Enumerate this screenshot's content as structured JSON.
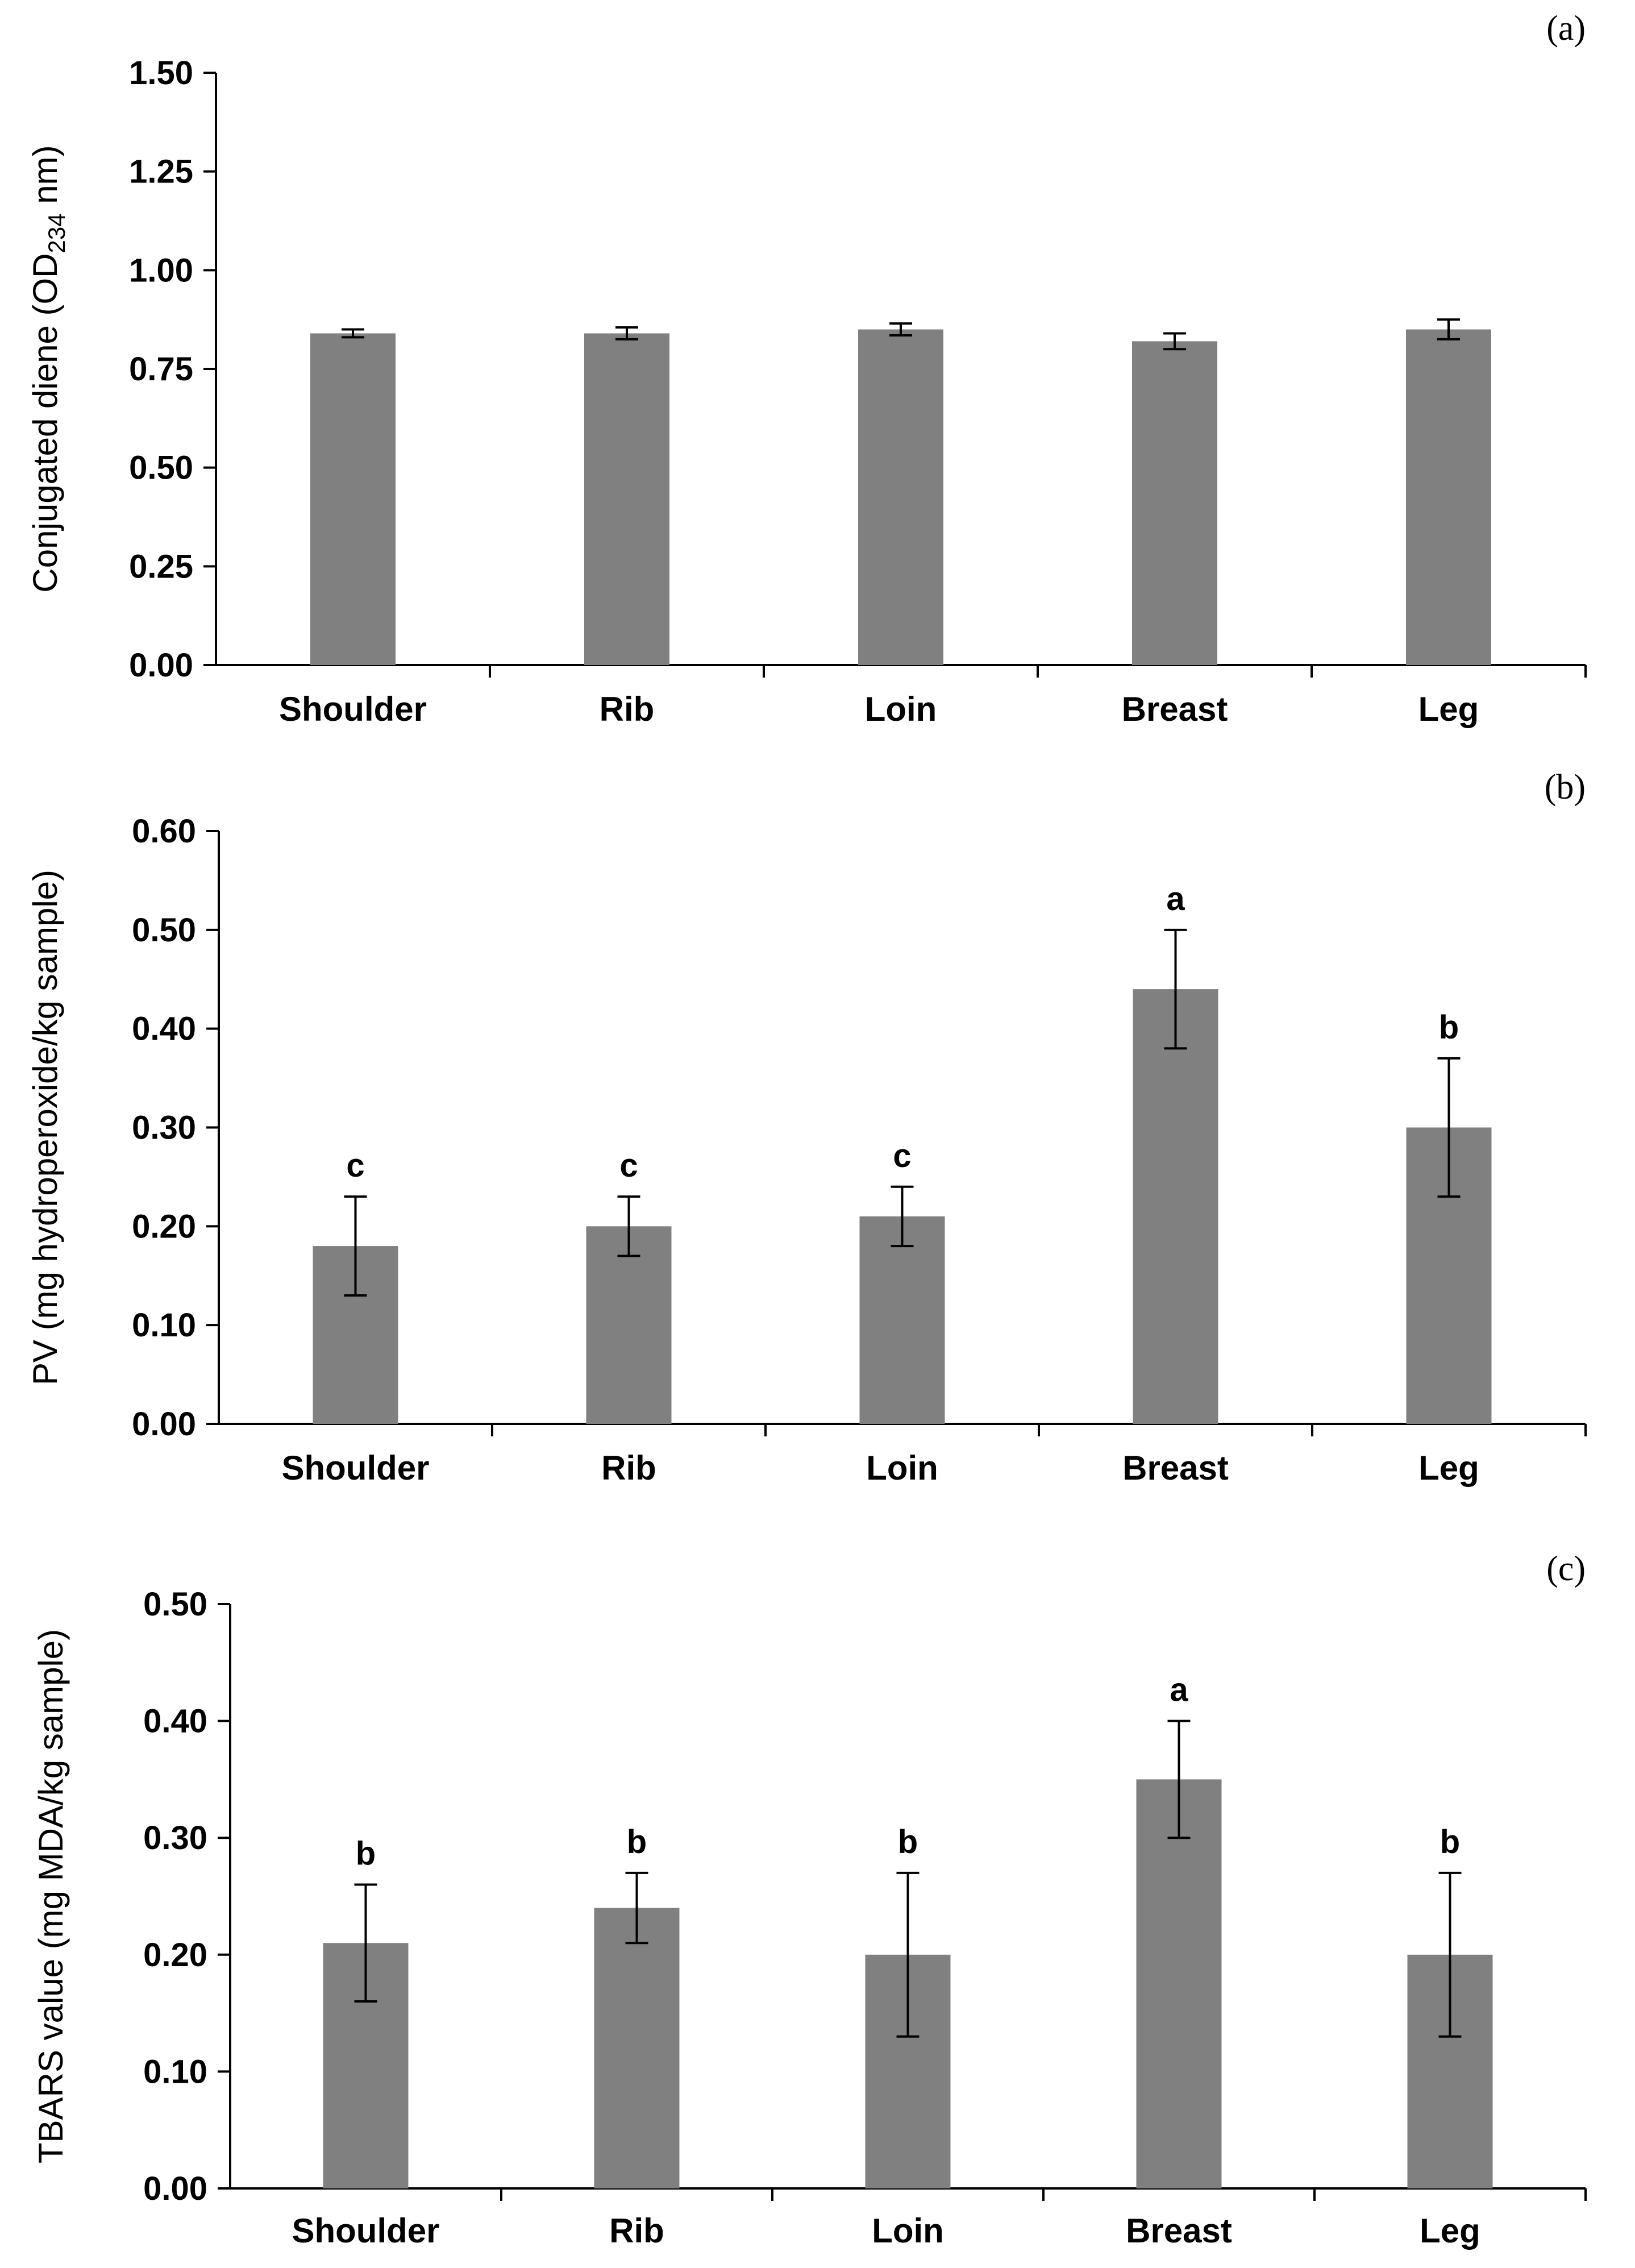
{
  "bar_color": "#808080",
  "axis_color": "#000000",
  "chart_data": [
    {
      "type": "bar",
      "panel_label": "(a)",
      "ylabel_parts": [
        "Conjugated diene (OD",
        "234",
        " nm)"
      ],
      "categories": [
        "Shoulder",
        "Rib",
        "Loin",
        "Breast",
        "Leg"
      ],
      "values": [
        0.84,
        0.84,
        0.85,
        0.82,
        0.85
      ],
      "errors": [
        0.01,
        0.015,
        0.015,
        0.02,
        0.025
      ],
      "significance_letters": [],
      "ylim": [
        0,
        1.5
      ],
      "yticks": [
        0,
        0.25,
        0.5,
        0.75,
        1.0,
        1.25,
        1.5
      ],
      "ytick_labels": [
        "0.00",
        "0.25",
        "0.50",
        "0.75",
        "1.00",
        "1.25",
        "1.50"
      ]
    },
    {
      "type": "bar",
      "panel_label": "(b)",
      "ylabel_parts": [
        "PV (mg hydroperoxide/kg sample)"
      ],
      "categories": [
        "Shoulder",
        "Rib",
        "Loin",
        "Breast",
        "Leg"
      ],
      "values": [
        0.18,
        0.2,
        0.21,
        0.44,
        0.3
      ],
      "errors": [
        0.05,
        0.03,
        0.03,
        0.06,
        0.07
      ],
      "significance_letters": [
        "c",
        "c",
        "c",
        "a",
        "b"
      ],
      "ylim": [
        0,
        0.6
      ],
      "yticks": [
        0,
        0.1,
        0.2,
        0.3,
        0.4,
        0.5,
        0.6
      ],
      "ytick_labels": [
        "0.00",
        "0.10",
        "0.20",
        "0.30",
        "0.40",
        "0.50",
        "0.60"
      ]
    },
    {
      "type": "bar",
      "panel_label": "(c)",
      "ylabel_parts": [
        "TBARS value (mg MDA/kg sample)"
      ],
      "categories": [
        "Shoulder",
        "Rib",
        "Loin",
        "Breast",
        "Leg"
      ],
      "values": [
        0.21,
        0.24,
        0.2,
        0.35,
        0.2
      ],
      "errors": [
        0.05,
        0.03,
        0.07,
        0.05,
        0.07
      ],
      "significance_letters": [
        "b",
        "b",
        "b",
        "a",
        "b"
      ],
      "ylim": [
        0,
        0.5
      ],
      "yticks": [
        0,
        0.1,
        0.2,
        0.3,
        0.4,
        0.5
      ],
      "ytick_labels": [
        "0.00",
        "0.10",
        "0.20",
        "0.30",
        "0.40",
        "0.50"
      ]
    }
  ]
}
